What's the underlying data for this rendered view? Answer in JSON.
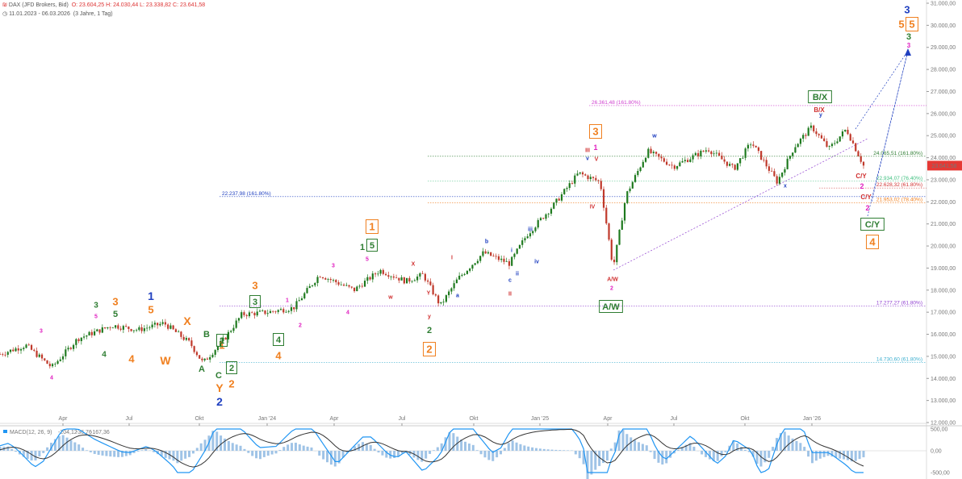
{
  "header": {
    "instrument": "DAX (JFD Brokers, Bid)",
    "ohlc": "O: 23.604,25  H: 24.030,44  L: 23.338,82  C: 23.641,58",
    "range": "11.01.2023 - 06.03.2026",
    "span": "(3 Jahre, 1 Tag)"
  },
  "colors": {
    "candle_up": "#1f7a1f",
    "candle_down": "#c0392b",
    "magenta": "#e020c0",
    "green": "#2e7d32",
    "orange": "#f08020",
    "blue": "#2040c0",
    "red": "#d03030",
    "purple": "#9040d0",
    "price_box": "#e53935"
  },
  "chart_data": {
    "type": "candlestick",
    "title": "DAX (JFD Brokers, Bid)",
    "x_ticks": [
      "Apr",
      "Jul",
      "Okt",
      "Jan '24",
      "Apr",
      "Jul",
      "Okt",
      "Jan '25",
      "Apr",
      "Jul",
      "Okt",
      "Jan '26"
    ],
    "y_ticks": [
      "12.000,00",
      "13.000,00",
      "14.000,00",
      "15.000,00",
      "16.000,00",
      "17.000,00",
      "18.000,00",
      "19.000,00",
      "20.000,00",
      "21.000,00",
      "22.000,00",
      "23.000,00",
      "24.000,00",
      "25.000,00",
      "26.000,00",
      "27.000,00",
      "28.000,00",
      "29.000,00",
      "30.000,00",
      "31.000,00"
    ],
    "ylim": [
      12000,
      31000
    ],
    "last_price": "23.641,58",
    "price_path": [
      [
        0,
        15100
      ],
      [
        0.03,
        15500
      ],
      [
        0.06,
        14500
      ],
      [
        0.09,
        15800
      ],
      [
        0.13,
        16400
      ],
      [
        0.16,
        16200
      ],
      [
        0.19,
        16500
      ],
      [
        0.22,
        15600
      ],
      [
        0.235,
        14700
      ],
      [
        0.26,
        15800
      ],
      [
        0.28,
        16900
      ],
      [
        0.31,
        17000
      ],
      [
        0.34,
        17200
      ],
      [
        0.37,
        18700
      ],
      [
        0.41,
        18000
      ],
      [
        0.44,
        18900
      ],
      [
        0.47,
        18400
      ],
      [
        0.49,
        18700
      ],
      [
        0.51,
        17300
      ],
      [
        0.53,
        18500
      ],
      [
        0.56,
        19700
      ],
      [
        0.59,
        19200
      ],
      [
        0.61,
        20500
      ],
      [
        0.64,
        21800
      ],
      [
        0.67,
        23300
      ],
      [
        0.695,
        22900
      ],
      [
        0.71,
        19000
      ],
      [
        0.725,
        22300
      ],
      [
        0.75,
        24300
      ],
      [
        0.78,
        23600
      ],
      [
        0.82,
        24400
      ],
      [
        0.85,
        23500
      ],
      [
        0.87,
        24700
      ],
      [
        0.9,
        22900
      ],
      [
        0.92,
        24500
      ],
      [
        0.94,
        25400
      ],
      [
        0.96,
        24400
      ],
      [
        0.98,
        25300
      ],
      [
        1.0,
        23641
      ]
    ],
    "fib_levels": [
      {
        "label": "26.361,48 (161.80%)",
        "value": 26361,
        "color": "#d040d0",
        "side": "left"
      },
      {
        "label": "24.065,51 (161.80%)",
        "value": 24065,
        "color": "#2e7d32",
        "side": "right"
      },
      {
        "label": "22.934,07 (76.40%)",
        "value": 22934,
        "color": "#40c080",
        "side": "right"
      },
      {
        "label": "22.628,32 (61.80%)",
        "value": 22628,
        "color": "#d03030",
        "side": "right"
      },
      {
        "label": "22.237,98 (161.80%)",
        "value": 22237,
        "color": "#2040c0",
        "side": "left"
      },
      {
        "label": "21.953,02 (78.40%)",
        "value": 21953,
        "color": "#f08020",
        "side": "right"
      },
      {
        "label": "17.277,27 (61.80%)",
        "value": 17277,
        "color": "#9040d0",
        "side": "right"
      },
      {
        "label": "14.730,60 (61.80%)",
        "value": 14730,
        "color": "#40b0d0",
        "side": "right"
      }
    ],
    "macd": {
      "label": "MACD(12, 26, 9)",
      "values": [
        "-204,12",
        "-36,76",
        "-167,36"
      ],
      "y_ticks": [
        "500,00",
        "0,00",
        "-500,00"
      ]
    }
  },
  "wave_labels": [
    {
      "t": "3",
      "c": "magenta"
    },
    {
      "t": "4",
      "c": "magenta"
    },
    {
      "t": "3",
      "c": "green"
    },
    {
      "t": "5",
      "c": "magenta"
    },
    {
      "t": "5",
      "c": "green"
    },
    {
      "t": "4",
      "c": "green"
    },
    {
      "t": "3",
      "c": "orange"
    },
    {
      "t": "4",
      "c": "orange"
    },
    {
      "t": "1",
      "c": "blue"
    },
    {
      "t": "5",
      "c": "orange"
    },
    {
      "t": "X",
      "c": "orange"
    },
    {
      "t": "W",
      "c": "orange"
    },
    {
      "t": "B",
      "c": "green"
    },
    {
      "t": "A",
      "c": "green"
    },
    {
      "t": "C",
      "c": "green"
    },
    {
      "t": "Y",
      "c": "orange"
    },
    {
      "t": "2",
      "c": "blue"
    },
    {
      "t": "1",
      "c": "orange"
    },
    {
      "t": "1",
      "c": "green"
    },
    {
      "t": "2",
      "c": "green"
    },
    {
      "t": "2",
      "c": "orange"
    },
    {
      "t": "3",
      "c": "orange"
    },
    {
      "t": "3",
      "c": "green"
    },
    {
      "t": "1",
      "c": "magenta"
    },
    {
      "t": "2",
      "c": "magenta"
    },
    {
      "t": "4",
      "c": "green"
    },
    {
      "t": "4",
      "c": "orange"
    },
    {
      "t": "3",
      "c": "magenta"
    },
    {
      "t": "4",
      "c": "magenta"
    },
    {
      "t": "1",
      "c": "orange"
    },
    {
      "t": "1",
      "c": "green"
    },
    {
      "t": "5",
      "c": "green"
    },
    {
      "t": "5",
      "c": "magenta"
    },
    {
      "t": "X",
      "c": "red"
    },
    {
      "t": "w",
      "c": "red"
    },
    {
      "t": "y",
      "c": "red"
    },
    {
      "t": "Y",
      "c": "red"
    },
    {
      "t": "2",
      "c": "green"
    },
    {
      "t": "2",
      "c": "orange"
    },
    {
      "t": "I",
      "c": "red"
    },
    {
      "t": "a",
      "c": "blue"
    },
    {
      "t": "b",
      "c": "blue"
    },
    {
      "t": "c",
      "c": "blue"
    },
    {
      "t": "i",
      "c": "blue"
    },
    {
      "t": "ii",
      "c": "blue"
    },
    {
      "t": "II",
      "c": "red"
    },
    {
      "t": "iii",
      "c": "blue"
    },
    {
      "t": "iv",
      "c": "blue"
    },
    {
      "t": "III",
      "c": "red"
    },
    {
      "t": "v",
      "c": "blue"
    },
    {
      "t": "1",
      "c": "magenta"
    },
    {
      "t": "3",
      "c": "orange"
    },
    {
      "t": "V",
      "c": "red"
    },
    {
      "t": "IV",
      "c": "red"
    },
    {
      "t": "A/W",
      "c": "red"
    },
    {
      "t": "2",
      "c": "magenta"
    },
    {
      "t": "A/W",
      "c": "green"
    },
    {
      "t": "w",
      "c": "blue"
    },
    {
      "t": "x",
      "c": "blue"
    },
    {
      "t": "B/X",
      "c": "red"
    },
    {
      "t": "y",
      "c": "blue"
    },
    {
      "t": "B/X",
      "c": "green"
    },
    {
      "t": "C/Y",
      "c": "red"
    },
    {
      "t": "2",
      "c": "magenta"
    },
    {
      "t": "C/Y",
      "c": "red"
    },
    {
      "t": "2",
      "c": "magenta"
    },
    {
      "t": "C/Y",
      "c": "green"
    },
    {
      "t": "4",
      "c": "orange"
    },
    {
      "t": "3",
      "c": "blue"
    },
    {
      "t": "5",
      "c": "orange"
    },
    {
      "t": "5",
      "c": "orange"
    },
    {
      "t": "3",
      "c": "green"
    },
    {
      "t": "3",
      "c": "magenta"
    }
  ]
}
